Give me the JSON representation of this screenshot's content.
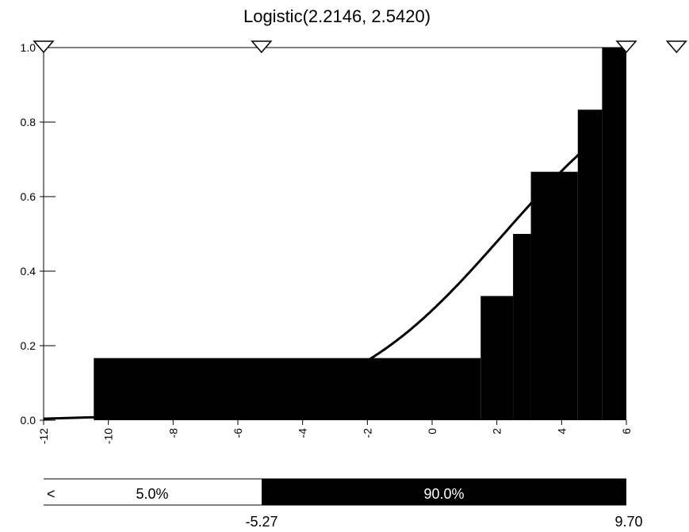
{
  "chart_data": {
    "type": "bar",
    "title": "Logistic(2.2146, 2.5420)",
    "xlabel": "",
    "ylabel": "",
    "xlim": [
      -12,
      6
    ],
    "ylim": [
      0,
      1
    ],
    "x_ticks": [
      -12,
      -10,
      -8,
      -6,
      -4,
      -2,
      0,
      2,
      4,
      6
    ],
    "x_tick_labels": [
      "-12",
      "-10",
      "-8",
      "-6",
      "-4",
      "-2",
      "0",
      "2",
      "4",
      "6"
    ],
    "y_ticks": [
      0,
      0.2,
      0.4,
      0.6,
      0.8,
      1.0
    ],
    "y_tick_labels": [
      "0.0",
      "0.2",
      "0.4",
      "0.6",
      "0.8",
      "1.0"
    ],
    "grid": false,
    "empirical_cdf_steps": [
      {
        "x_start": -10.45,
        "x_end": 1.5,
        "y": 0.1667
      },
      {
        "x_start": 1.5,
        "x_end": 2.5,
        "y": 0.3333
      },
      {
        "x_start": 2.5,
        "x_end": 3.05,
        "y": 0.5
      },
      {
        "x_start": 3.05,
        "x_end": 4.5,
        "y": 0.6667
      },
      {
        "x_start": 4.5,
        "x_end": 5.25,
        "y": 0.8333
      },
      {
        "x_start": 5.25,
        "x_end": 6.0,
        "y": 1.0
      }
    ],
    "fitted_curve": {
      "distribution": "Logistic",
      "params": [
        2.2146,
        2.542
      ],
      "points": [
        {
          "x": -12,
          "y": 0.004
        },
        {
          "x": -10.45,
          "y": 0.008
        }
      ]
    },
    "markers": [
      -12,
      -5.27,
      6,
      7.55
    ],
    "delimiter_bar": {
      "left_symbol": "<",
      "segments": [
        {
          "label": "5.0%",
          "fill": "#ffffff",
          "text_color": "#000000"
        },
        {
          "label": "90.0%",
          "fill": "#000000",
          "text_color": "#ffffff"
        }
      ],
      "values": [
        "-5.27",
        "9.70"
      ]
    }
  },
  "colors": {
    "fill": "#000000",
    "background": "#ffffff",
    "line": "#000000"
  }
}
